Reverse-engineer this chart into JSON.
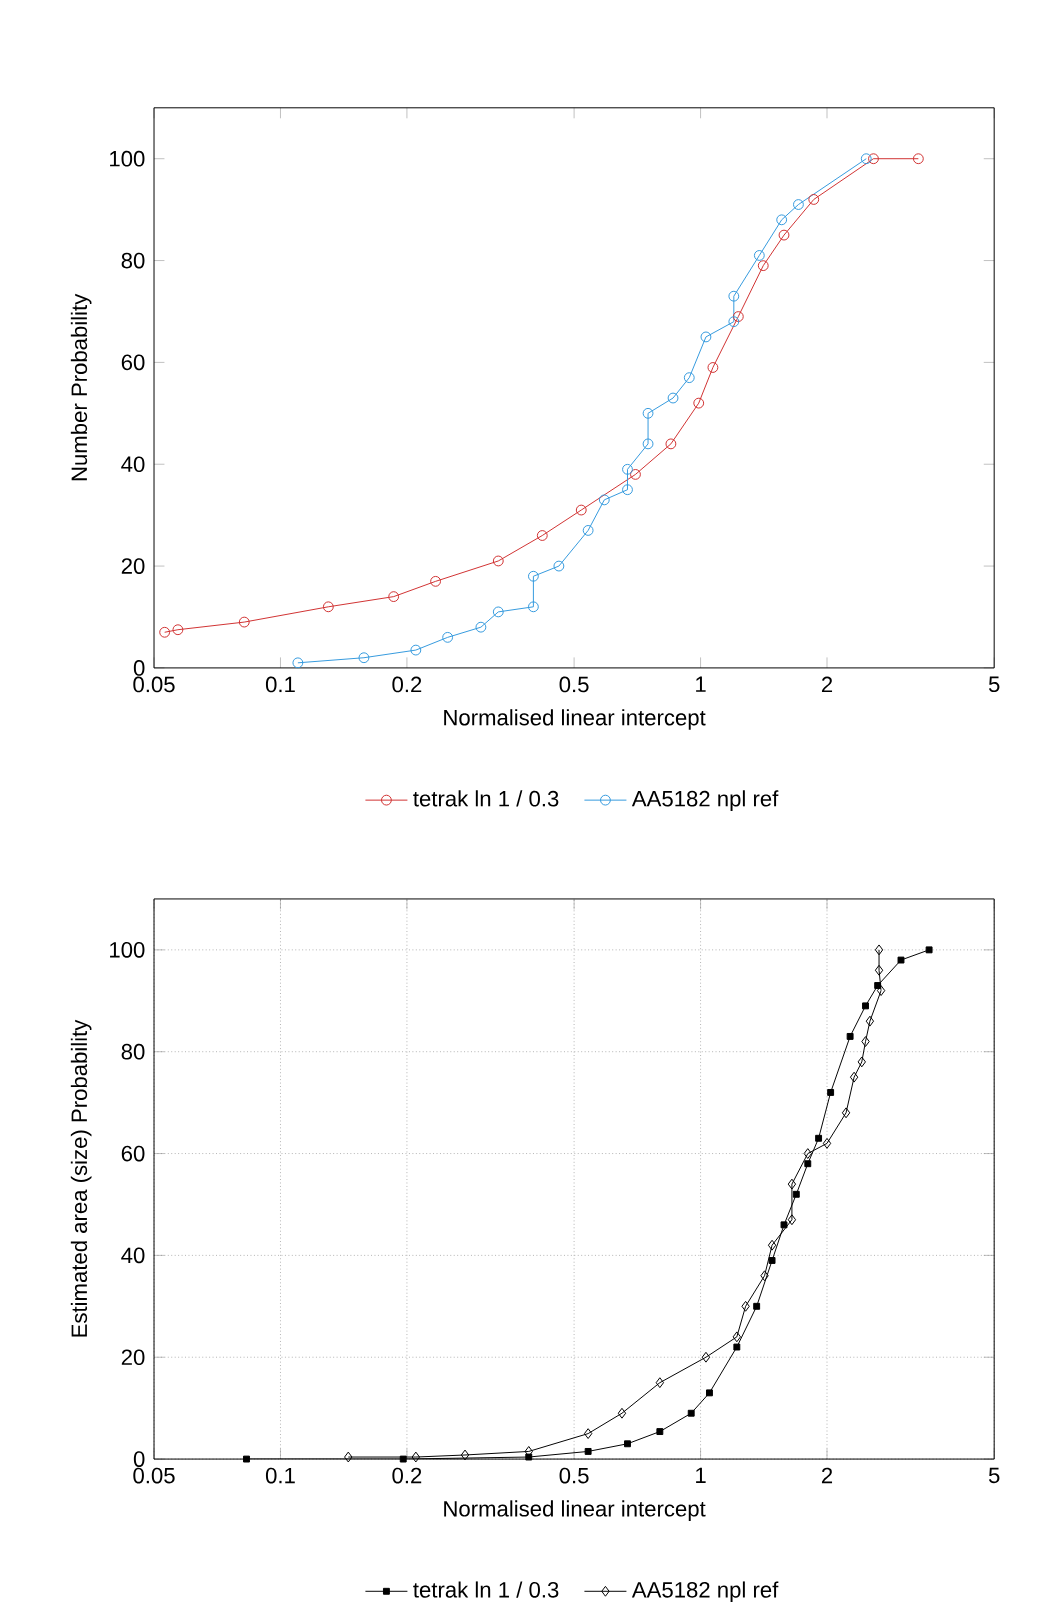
{
  "chart_data": [
    {
      "type": "line",
      "xlabel": "Normalised linear intercept",
      "ylabel": "Number Probability",
      "log": "x",
      "xlim": [
        0.05,
        5
      ],
      "xticks": [
        0.05,
        0.1,
        0.2,
        0.5,
        1,
        2,
        5
      ],
      "ylim": [
        0,
        110
      ],
      "yticks": [
        0,
        20,
        40,
        60,
        80,
        100
      ],
      "legend": "bottom",
      "series": [
        {
          "name": "tetrak ln 1 / 0.3",
          "color": "#d03030",
          "marker": "circle",
          "x": [
            3.3,
            2.58,
            1.86,
            1.58,
            1.41,
            1.23,
            1.07,
            0.99,
            0.85,
            0.7,
            0.52,
            0.42,
            0.33,
            0.234,
            0.186,
            0.13,
            0.082,
            0.057,
            0.053
          ],
          "values": [
            100,
            100,
            92,
            85,
            79,
            69,
            59,
            52,
            44,
            38,
            31,
            26,
            21,
            17,
            14,
            12,
            9,
            7.5,
            7
          ]
        },
        {
          "name": "AA5182 npl ref",
          "color": "#3399dd",
          "marker": "circle",
          "x": [
            2.48,
            1.71,
            1.56,
            1.38,
            1.2,
            1.2,
            1.03,
            0.94,
            0.86,
            0.75,
            0.75,
            0.67,
            0.67,
            0.59,
            0.54,
            0.46,
            0.4,
            0.4,
            0.33,
            0.3,
            0.25,
            0.21,
            0.158,
            0.11
          ],
          "values": [
            100,
            91,
            88,
            81,
            73,
            68,
            65,
            57,
            53,
            50,
            44,
            39,
            35,
            33,
            27,
            20,
            18,
            12,
            11,
            8,
            6,
            3.5,
            2,
            1
          ]
        }
      ]
    },
    {
      "type": "line",
      "xlabel": "Normalised linear intercept",
      "ylabel": "Estimated area (size) Probability",
      "log": "x",
      "xlim": [
        0.05,
        5
      ],
      "xticks": [
        0.05,
        0.1,
        0.2,
        0.5,
        1,
        2,
        5
      ],
      "ylim": [
        0,
        110
      ],
      "yticks": [
        0,
        20,
        40,
        60,
        80,
        100
      ],
      "grid": true,
      "legend": "bottom",
      "series": [
        {
          "name": "tetrak ln 1 / 0.3",
          "color": "#000000",
          "marker": "square",
          "x": [
            3.5,
            3.0,
            2.64,
            2.47,
            2.27,
            2.04,
            1.91,
            1.8,
            1.69,
            1.58,
            1.48,
            1.36,
            1.22,
            1.05,
            0.95,
            0.8,
            0.67,
            0.54,
            0.39,
            0.196,
            0.083
          ],
          "values": [
            100,
            98,
            93,
            89,
            83,
            72,
            63,
            58,
            52,
            46,
            39,
            30,
            22,
            13,
            9,
            5.4,
            3,
            1.5,
            0.4,
            0,
            0
          ]
        },
        {
          "name": "AA5182 npl ref",
          "color": "#000000",
          "marker": "diamond",
          "x": [
            2.66,
            2.66,
            2.69,
            2.53,
            2.47,
            2.42,
            2.32,
            2.22,
            2.0,
            1.8,
            1.65,
            1.65,
            1.48,
            1.42,
            1.28,
            1.22,
            1.03,
            0.8,
            0.65,
            0.54,
            0.39,
            0.275,
            0.21,
            0.145
          ],
          "values": [
            100,
            96,
            92,
            86,
            82,
            78,
            75,
            68,
            62,
            60,
            54,
            47,
            42,
            36,
            30,
            24,
            20,
            15,
            9,
            5,
            1.5,
            0.8,
            0.4,
            0.4
          ]
        }
      ]
    }
  ]
}
